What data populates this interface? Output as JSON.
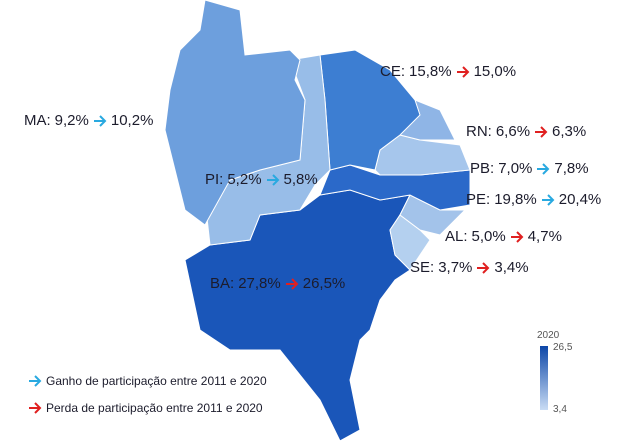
{
  "regions": [
    {
      "label": "MA:",
      "from": "9,2%",
      "to": "10,2%",
      "trend": "gain",
      "color": "#6d9fdd"
    },
    {
      "label": "PI:",
      "from": "5,2%",
      "to": "5,8%",
      "trend": "gain",
      "color": "#98bde8"
    },
    {
      "label": "CE:",
      "from": "15,8%",
      "to": "15,0%",
      "trend": "loss",
      "color": "#3d7ed2"
    },
    {
      "label": "RN:",
      "from": "6,6%",
      "to": "6,3%",
      "trend": "loss",
      "color": "#8fb5e6"
    },
    {
      "label": "PB:",
      "from": "7,0%",
      "to": "7,8%",
      "trend": "gain",
      "color": "#a6c6ec"
    },
    {
      "label": "PE:",
      "from": "19,8%",
      "to": "20,4%",
      "trend": "gain",
      "color": "#2b69c9"
    },
    {
      "label": "AL:",
      "from": "5,0%",
      "to": "4,7%",
      "trend": "loss",
      "color": "#a3c3ea"
    },
    {
      "label": "SE:",
      "from": "3,7%",
      "to": "3,4%",
      "trend": "loss",
      "color": "#b4d0ef"
    },
    {
      "label": "BA:",
      "from": "27,8%",
      "to": "26,5%",
      "trend": "loss",
      "color": "#1a56b9"
    }
  ],
  "legend": {
    "gain": "Ganho de participação entre 2011 e 2020",
    "loss": "Perda de participação entre 2011 e 2020"
  },
  "colorbar": {
    "title": "2020",
    "max": "26,5",
    "min": "3,4"
  },
  "trend_colors": {
    "gain": "#29a9e0",
    "loss": "#e02020"
  }
}
